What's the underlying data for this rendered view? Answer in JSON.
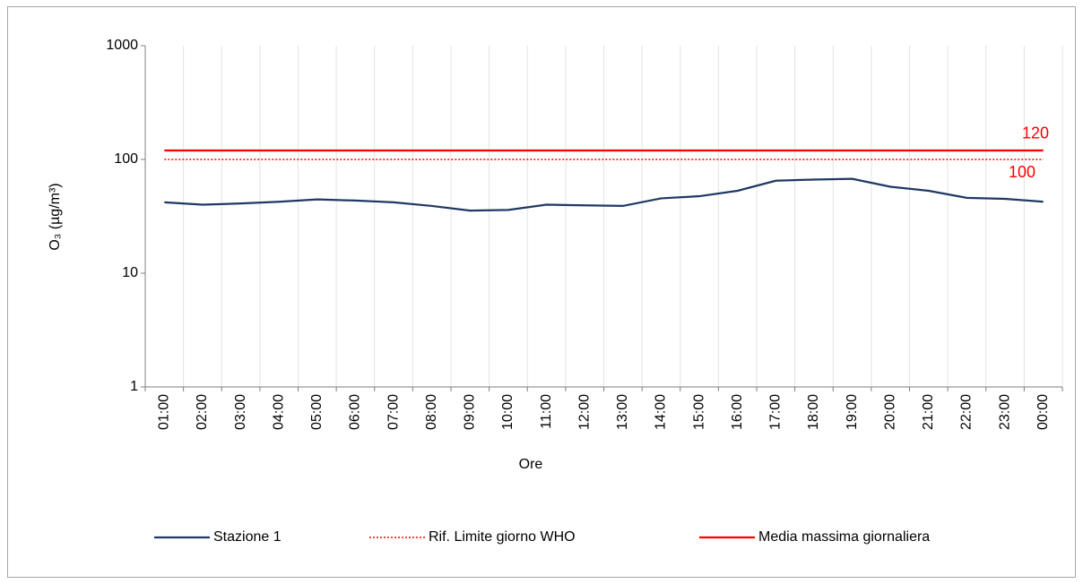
{
  "chart_data": {
    "type": "line",
    "x_label": "Ore",
    "y_label": "O₃ (µg/m³)",
    "categories": [
      "01:00",
      "02:00",
      "03:00",
      "04:00",
      "05:00",
      "06:00",
      "07:00",
      "08:00",
      "09:00",
      "10:00",
      "11:00",
      "12:00",
      "13:00",
      "14:00",
      "15:00",
      "16:00",
      "17:00",
      "18:00",
      "19:00",
      "20:00",
      "21:00",
      "22:00",
      "23:00",
      "00:00"
    ],
    "series": [
      {
        "name": "Stazione 1",
        "color": "#203864",
        "values": [
          42,
          40,
          41,
          42.5,
          44.5,
          43.5,
          42,
          39,
          35.5,
          36,
          40,
          39.5,
          39,
          45.5,
          47.5,
          53,
          65,
          66.5,
          67.5,
          57.5,
          53,
          46,
          45,
          42.5
        ]
      }
    ],
    "reference_lines": [
      {
        "name": "Rif. Limite giorno WHO",
        "value": 100,
        "color": "#ff0000",
        "style": "dotted"
      },
      {
        "name": "Media massima giornaliera",
        "value": 120,
        "color": "#ff0000",
        "style": "solid"
      }
    ],
    "log_scale": true,
    "ylim": [
      1,
      1000
    ],
    "yticks": [
      1,
      10,
      100,
      1000
    ],
    "grid": true
  }
}
